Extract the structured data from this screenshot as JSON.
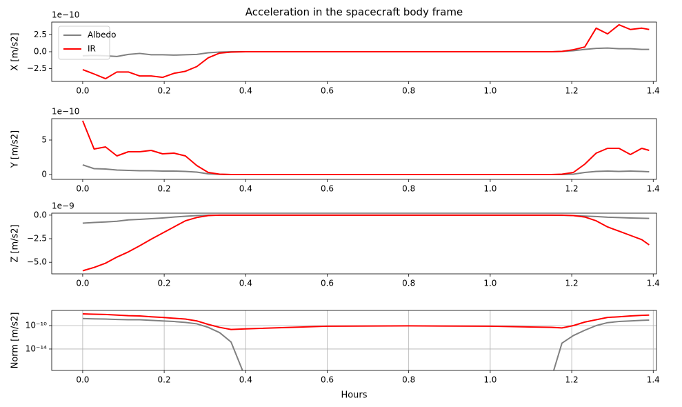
{
  "chart_data": [
    {
      "type": "line",
      "title": "Acceleration in the spacecraft body frame",
      "ylabel": "X [m/s2]",
      "offset_text": "1e−10",
      "legend": "upper left",
      "x": [
        0,
        0.028,
        0.056,
        0.084,
        0.112,
        0.14,
        0.168,
        0.196,
        0.224,
        0.252,
        0.28,
        0.308,
        0.336,
        0.364,
        0.4,
        0.6,
        0.8,
        1.0,
        1.15,
        1.176,
        1.204,
        1.232,
        1.26,
        1.288,
        1.316,
        1.344,
        1.372,
        1.39
      ],
      "series": [
        {
          "name": "Albedo",
          "color": "#808080",
          "values": [
            -0.6,
            -0.55,
            -0.6,
            -0.7,
            -0.4,
            -0.25,
            -0.45,
            -0.45,
            -0.5,
            -0.45,
            -0.4,
            -0.15,
            -0.05,
            0,
            0,
            0,
            0,
            0,
            0,
            0.05,
            0.15,
            0.35,
            0.5,
            0.55,
            0.45,
            0.45,
            0.35,
            0.35
          ]
        },
        {
          "name": "IR",
          "color": "#ff0000",
          "values": [
            -2.65,
            -3.3,
            -4.0,
            -3.0,
            -3.0,
            -3.6,
            -3.6,
            -3.8,
            -3.2,
            -2.9,
            -2.2,
            -0.9,
            -0.2,
            -0.05,
            0,
            0,
            0,
            0,
            0,
            0.05,
            0.3,
            0.7,
            3.5,
            2.65,
            4.0,
            3.3,
            3.5,
            3.3
          ]
        }
      ],
      "xlim": [
        -0.076,
        1.408
      ],
      "xticks": [
        {
          "value": 0,
          "label": "0.0"
        },
        0.2,
        0.4,
        0.6,
        0.8,
        {
          "value": 1,
          "label": "1.0"
        },
        1.2,
        1.4
      ],
      "ylim": [
        -4.4,
        4.4
      ],
      "yticks": [
        {
          "value": -2.5,
          "label": "−2.5"
        },
        {
          "value": 0,
          "label": "0.0"
        },
        2.5
      ]
    },
    {
      "type": "line",
      "ylabel": "Y [m/s2]",
      "offset_text": "1e−10",
      "x": [
        0,
        0.028,
        0.056,
        0.084,
        0.112,
        0.14,
        0.168,
        0.196,
        0.224,
        0.252,
        0.28,
        0.308,
        0.336,
        0.364,
        0.4,
        0.6,
        0.8,
        1.0,
        1.15,
        1.176,
        1.204,
        1.232,
        1.26,
        1.288,
        1.316,
        1.344,
        1.372,
        1.39
      ],
      "series": [
        {
          "name": "Albedo",
          "color": "#808080",
          "values": [
            1.4,
            0.85,
            0.8,
            0.65,
            0.6,
            0.55,
            0.55,
            0.5,
            0.5,
            0.45,
            0.35,
            0.1,
            0.02,
            0,
            0,
            0,
            0,
            0,
            0,
            0,
            0.05,
            0.3,
            0.45,
            0.5,
            0.45,
            0.5,
            0.45,
            0.4
          ]
        },
        {
          "name": "IR",
          "color": "#ff0000",
          "values": [
            7.8,
            3.7,
            4.0,
            2.7,
            3.3,
            3.3,
            3.5,
            3.0,
            3.1,
            2.7,
            1.3,
            0.3,
            0.05,
            0,
            0,
            0,
            0,
            0,
            0,
            0.05,
            0.3,
            1.5,
            3.1,
            3.8,
            3.8,
            2.9,
            3.8,
            3.5
          ]
        }
      ],
      "xlim": [
        -0.076,
        1.408
      ],
      "xticks": [
        {
          "value": 0,
          "label": "0.0"
        },
        0.2,
        0.4,
        0.6,
        0.8,
        {
          "value": 1,
          "label": "1.0"
        },
        1.2,
        1.4
      ],
      "ylim": [
        -0.7,
        8.1
      ],
      "yticks": [
        0,
        5
      ]
    },
    {
      "type": "line",
      "ylabel": "Z [m/s2]",
      "offset_text": "1e−9",
      "x": [
        0,
        0.028,
        0.056,
        0.084,
        0.112,
        0.14,
        0.168,
        0.196,
        0.224,
        0.252,
        0.28,
        0.308,
        0.336,
        0.364,
        0.4,
        0.6,
        0.8,
        1.0,
        1.15,
        1.176,
        1.204,
        1.232,
        1.26,
        1.288,
        1.316,
        1.344,
        1.372,
        1.39
      ],
      "series": [
        {
          "name": "Albedo",
          "color": "#808080",
          "values": [
            -0.85,
            -0.78,
            -0.72,
            -0.65,
            -0.5,
            -0.45,
            -0.38,
            -0.3,
            -0.2,
            -0.12,
            -0.05,
            0,
            0,
            0,
            0,
            0,
            0,
            0,
            0,
            -0.02,
            -0.05,
            -0.1,
            -0.15,
            -0.22,
            -0.26,
            -0.3,
            -0.33,
            -0.35
          ]
        },
        {
          "name": "IR",
          "color": "#ff0000",
          "values": [
            -5.9,
            -5.55,
            -5.1,
            -4.45,
            -3.9,
            -3.25,
            -2.55,
            -1.9,
            -1.25,
            -0.6,
            -0.25,
            -0.05,
            0,
            0,
            0,
            0,
            0,
            0,
            0,
            0,
            -0.05,
            -0.2,
            -0.6,
            -1.25,
            -1.7,
            -2.15,
            -2.6,
            -3.15
          ]
        }
      ],
      "xlim": [
        -0.076,
        1.408
      ],
      "xticks": [
        {
          "value": 0,
          "label": "0.0"
        },
        0.2,
        0.4,
        0.6,
        0.8,
        {
          "value": 1,
          "label": "1.0"
        },
        1.2,
        1.4
      ],
      "ylim": [
        -6.23,
        0.21
      ],
      "yticks": [
        {
          "value": -5,
          "label": "−5.0"
        },
        {
          "value": -2.5,
          "label": "−2.5"
        },
        {
          "value": 0,
          "label": "0.0"
        }
      ]
    },
    {
      "type": "line",
      "ylabel": "Norm [m/s2]",
      "xlabel": "Hours",
      "yscale": "log",
      "grid": true,
      "x": [
        0,
        0.028,
        0.056,
        0.084,
        0.112,
        0.14,
        0.168,
        0.196,
        0.224,
        0.252,
        0.28,
        0.308,
        0.336,
        0.364,
        0.4,
        0.6,
        0.8,
        1.0,
        1.15,
        1.176,
        1.204,
        1.232,
        1.26,
        1.288,
        1.316,
        1.344,
        1.372,
        1.39
      ],
      "series": [
        {
          "name": "Albedo",
          "color": "#808080",
          "values": [
            1.6e-09,
            1.4e-09,
            1.3e-09,
            1.1e-09,
            1e-09,
            1e-09,
            7.9e-10,
            6.3e-10,
            5e-10,
            3.5e-10,
            2e-10,
            5e-11,
            6.3e-12,
            1.6e-13,
            1e-19,
            null,
            null,
            null,
            1e-19,
            1e-13,
            2e-12,
            1.6e-11,
            1e-10,
            3.2e-10,
            5e-10,
            6.3e-10,
            7.9e-10,
            8.9e-10
          ]
        },
        {
          "name": "IR",
          "color": "#ff0000",
          "values": [
            1e-08,
            8.9e-09,
            7.9e-09,
            6.3e-09,
            5e-09,
            4.5e-09,
            3.2e-09,
            2.5e-09,
            1.8e-09,
            1.3e-09,
            6.3e-10,
            1.6e-10,
            5e-11,
            2.2e-11,
            2.8e-11,
            7.9e-11,
            8.9e-11,
            7.9e-11,
            5e-11,
            4e-11,
            1e-10,
            4e-10,
            1e-09,
            2.5e-09,
            3.2e-09,
            4.5e-09,
            5.6e-09,
            6.3e-09
          ]
        }
      ],
      "xlim": [
        -0.076,
        1.408
      ],
      "xticks": [
        {
          "value": 0,
          "label": "0.0"
        },
        0.2,
        0.4,
        0.6,
        0.8,
        {
          "value": 1,
          "label": "1.0"
        },
        1.2,
        1.4
      ],
      "ylim": [
        2.2e-18,
        3.9e-08
      ],
      "yticks": [
        {
          "value": 1e-14,
          "label": "10⁻¹⁴"
        },
        {
          "value": 1e-10,
          "label": "10⁻¹⁰"
        }
      ]
    }
  ]
}
